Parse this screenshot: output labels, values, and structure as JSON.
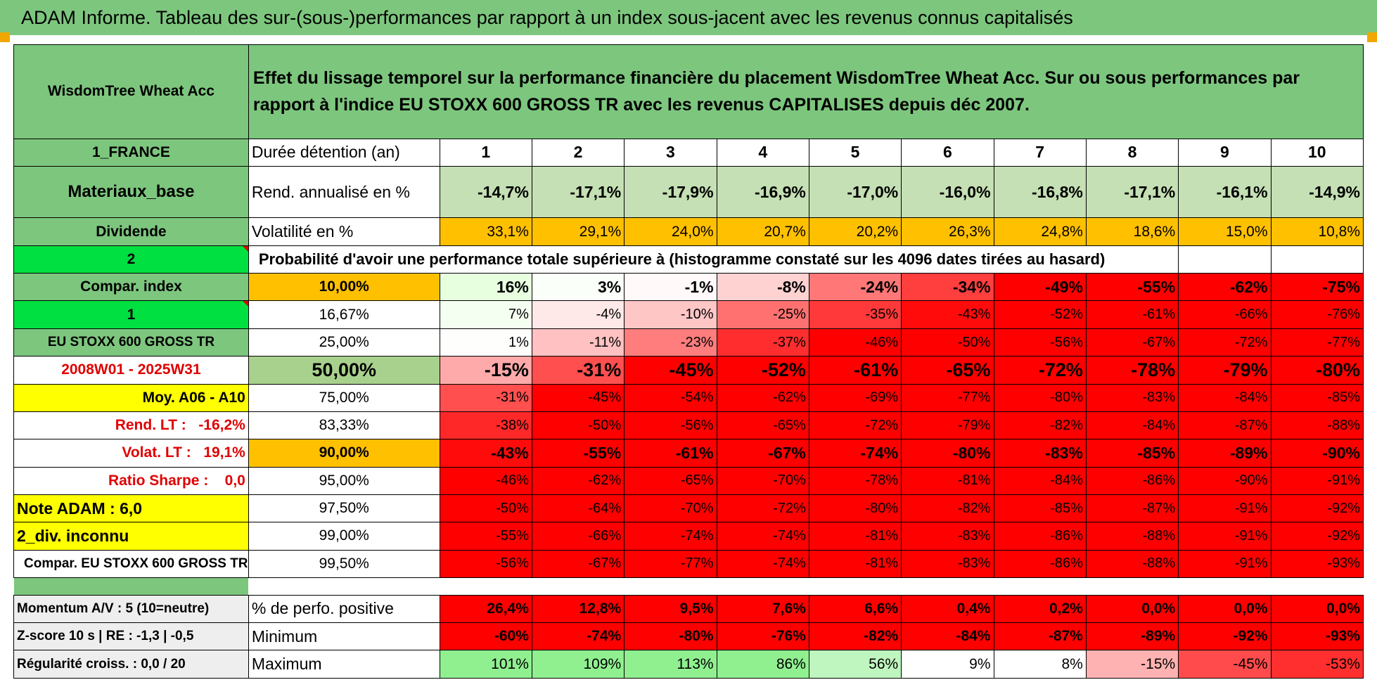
{
  "title": "ADAM Informe. Tableau des sur-(sous-)performances par rapport à un index sous-jacent avec les revenus connus capitalisés",
  "fund_name": "WisdomTree Wheat Acc",
  "description": "Effet du lissage temporel sur la performance financière du placement WisdomTree Wheat Acc. Sur ou sous performances par rapport à l'indice EU STOXX 600 GROSS TR avec les revenus CAPITALISES depuis déc 2007.",
  "left_col": {
    "country": "1_FRANCE",
    "sector": "Materiaux_base",
    "dividend": "Dividende",
    "dividend_value": "2",
    "compar_index": "Compar. index",
    "compar_value": "1",
    "index_name": "EU STOXX 600 GROSS TR",
    "period": "2008W01 - 2025W31",
    "moy": "Moy. A06 - A10",
    "rend_lt_label": "Rend. LT :",
    "rend_lt_value": "-16,2%",
    "volat_lt_label": "Volat. LT :",
    "volat_lt_value": "19,1%",
    "sharpe_label": "Ratio Sharpe :",
    "sharpe_value": "0,0",
    "note": "Note ADAM : 6,0",
    "div_unknown": "2_div. inconnu",
    "compar_full": "Compar. EU STOXX 600 GROSS TR",
    "momentum": "Momentum A/V : 5 (10=neutre)",
    "zscore": "Z-score 10 s | RE : -1,3 | -0,5",
    "regularite": "Régularité croiss. : 0,0 / 20"
  },
  "header_row": {
    "label": "Durée détention (an)",
    "years": [
      "1",
      "2",
      "3",
      "4",
      "5",
      "6",
      "7",
      "8",
      "9",
      "10"
    ]
  },
  "rend_row": {
    "label": "Rend. annualisé en %",
    "values": [
      "-14,7%",
      "-17,1%",
      "-17,9%",
      "-16,9%",
      "-17,0%",
      "-16,0%",
      "-16,8%",
      "-17,1%",
      "-16,1%",
      "-14,9%"
    ]
  },
  "vol_row": {
    "label": "Volatilité en %",
    "values": [
      "33,1%",
      "29,1%",
      "24,0%",
      "20,7%",
      "20,2%",
      "26,3%",
      "24,8%",
      "18,6%",
      "15,0%",
      "10,8%"
    ]
  },
  "prob_title": "Probabilité d'avoir une performance totale supérieure à (histogramme constaté sur les 4096 dates tirées au hasard)",
  "prob_rows": [
    {
      "pct": "10,00%",
      "values": [
        "16%",
        "3%",
        "-1%",
        "-8%",
        "-24%",
        "-34%",
        "-49%",
        "-55%",
        "-62%",
        "-75%"
      ]
    },
    {
      "pct": "16,67%",
      "values": [
        "7%",
        "-4%",
        "-10%",
        "-25%",
        "-35%",
        "-43%",
        "-52%",
        "-61%",
        "-66%",
        "-76%"
      ]
    },
    {
      "pct": "25,00%",
      "values": [
        "1%",
        "-11%",
        "-23%",
        "-37%",
        "-46%",
        "-50%",
        "-56%",
        "-67%",
        "-72%",
        "-77%"
      ]
    },
    {
      "pct": "50,00%",
      "values": [
        "-15%",
        "-31%",
        "-45%",
        "-52%",
        "-61%",
        "-65%",
        "-72%",
        "-78%",
        "-79%",
        "-80%"
      ]
    },
    {
      "pct": "75,00%",
      "values": [
        "-31%",
        "-45%",
        "-54%",
        "-62%",
        "-69%",
        "-77%",
        "-80%",
        "-83%",
        "-84%",
        "-85%"
      ]
    },
    {
      "pct": "83,33%",
      "values": [
        "-38%",
        "-50%",
        "-56%",
        "-65%",
        "-72%",
        "-79%",
        "-82%",
        "-84%",
        "-87%",
        "-88%"
      ]
    },
    {
      "pct": "90,00%",
      "values": [
        "-43%",
        "-55%",
        "-61%",
        "-67%",
        "-74%",
        "-80%",
        "-83%",
        "-85%",
        "-89%",
        "-90%"
      ]
    },
    {
      "pct": "95,00%",
      "values": [
        "-46%",
        "-62%",
        "-65%",
        "-70%",
        "-78%",
        "-81%",
        "-84%",
        "-86%",
        "-90%",
        "-91%"
      ]
    },
    {
      "pct": "97,50%",
      "values": [
        "-50%",
        "-64%",
        "-70%",
        "-72%",
        "-80%",
        "-82%",
        "-85%",
        "-87%",
        "-91%",
        "-92%"
      ]
    },
    {
      "pct": "99,00%",
      "values": [
        "-55%",
        "-66%",
        "-74%",
        "-74%",
        "-81%",
        "-83%",
        "-86%",
        "-88%",
        "-91%",
        "-92%"
      ]
    },
    {
      "pct": "99,50%",
      "values": [
        "-56%",
        "-67%",
        "-77%",
        "-74%",
        "-81%",
        "-83%",
        "-86%",
        "-88%",
        "-91%",
        "-93%"
      ]
    }
  ],
  "stats_rows": [
    {
      "label": "% de perfo. positive",
      "values": [
        "26,4%",
        "12,8%",
        "9,5%",
        "7,6%",
        "6,6%",
        "0,4%",
        "0,2%",
        "0,0%",
        "0,0%",
        "0,0%"
      ]
    },
    {
      "label": "Minimum",
      "values": [
        "-60%",
        "-74%",
        "-80%",
        "-76%",
        "-82%",
        "-84%",
        "-87%",
        "-89%",
        "-92%",
        "-93%"
      ]
    },
    {
      "label": "Maximum",
      "values": [
        "101%",
        "109%",
        "113%",
        "86%",
        "56%",
        "9%",
        "8%",
        "-15%",
        "-45%",
        "-53%"
      ]
    }
  ],
  "colors": {
    "green_header": "#7dc67e",
    "bright_green": "#00e040",
    "yellow": "#ffff00",
    "orange": "#ffc000",
    "red": "#ff0000",
    "light_green": "#c5e0b4"
  }
}
